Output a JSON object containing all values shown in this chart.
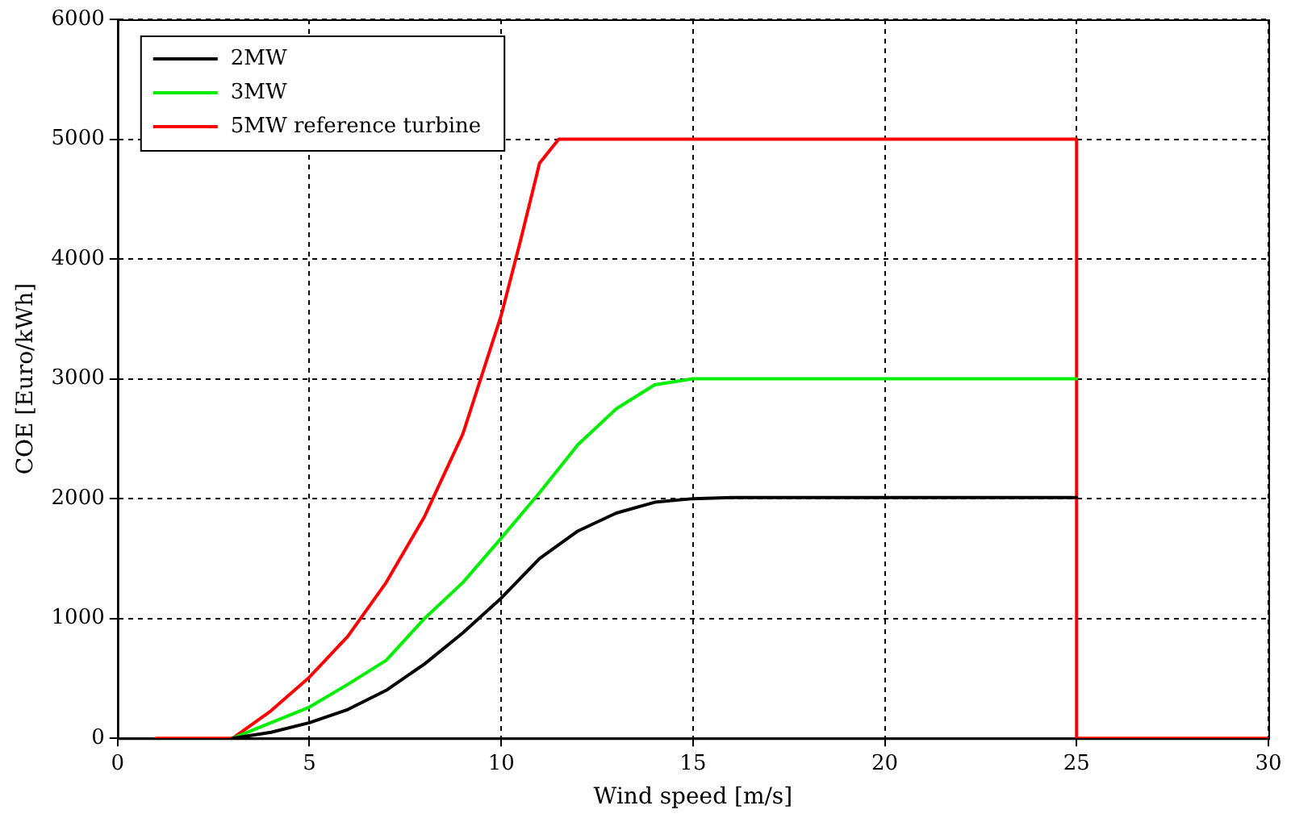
{
  "chart_data": {
    "type": "line",
    "xlabel": "Wind speed [m/s]",
    "ylabel": "COE [Euro/kWh]",
    "xlim": [
      0,
      30
    ],
    "xticks": [
      0,
      5,
      10,
      15,
      20,
      25,
      30
    ],
    "ylim": [
      0,
      6000
    ],
    "yticks": [
      0,
      1000,
      2000,
      3000,
      4000,
      5000,
      6000
    ],
    "grid": true,
    "legend": "top left",
    "marker": "none",
    "line_style": "solid",
    "series": [
      {
        "name": "2MW",
        "color": "#000000",
        "x": [
          3,
          4,
          5,
          6,
          7,
          8,
          9,
          10,
          11,
          12,
          13,
          14,
          15,
          16,
          25
        ],
        "values": [
          0,
          50,
          130,
          240,
          400,
          620,
          880,
          1170,
          1500,
          1730,
          1880,
          1970,
          2000,
          2010,
          2010
        ]
      },
      {
        "name": "3MW",
        "color": "#00ee00",
        "x": [
          3,
          4,
          5,
          6,
          7,
          8,
          9,
          10,
          11,
          12,
          13,
          14,
          15,
          25
        ],
        "values": [
          0,
          130,
          260,
          450,
          650,
          1000,
          1300,
          1670,
          2050,
          2450,
          2750,
          2950,
          3000,
          3000
        ]
      },
      {
        "name": "5MW reference turbine",
        "color": "#ff0000",
        "x": [
          1,
          3,
          4,
          5,
          6,
          7,
          8,
          9,
          10,
          10.5,
          11,
          11.5,
          25,
          25,
          30
        ],
        "values": [
          0,
          0,
          230,
          510,
          850,
          1300,
          1850,
          2540,
          3530,
          4150,
          4800,
          5000,
          5000,
          0,
          0
        ]
      }
    ]
  }
}
